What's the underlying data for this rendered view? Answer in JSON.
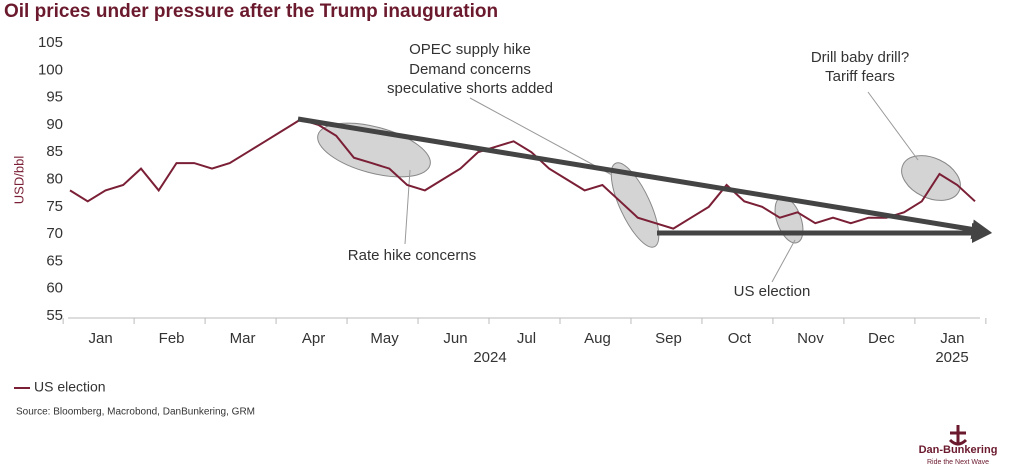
{
  "chart_data": {
    "type": "line",
    "title": "Oil prices under pressure after the Trump inauguration",
    "y_label": "USD/bbl",
    "categories": [
      null,
      null,
      "Jan",
      null,
      null,
      null,
      "Feb",
      null,
      null,
      null,
      "Mar",
      null,
      null,
      null,
      "Apr",
      null,
      null,
      null,
      "May",
      null,
      null,
      null,
      "Jun",
      null,
      null,
      null,
      "Jul",
      null,
      null,
      null,
      "Aug",
      null,
      null,
      null,
      "Sep",
      null,
      null,
      null,
      "Oct",
      null,
      null,
      null,
      "Nov",
      null,
      null,
      null,
      "Dec",
      null,
      null,
      null,
      "Jan",
      null
    ],
    "year_labels": [
      "2024",
      "2025"
    ],
    "series": [
      {
        "name": "US election",
        "color": "#7a1f35",
        "values": [
          78,
          76,
          78,
          79,
          82,
          78,
          83,
          83,
          82,
          83,
          85,
          87,
          89,
          91,
          90,
          88,
          84,
          83,
          82,
          79,
          78,
          80,
          82,
          85,
          86,
          87,
          85,
          82,
          80,
          78,
          79,
          76,
          73,
          72,
          71,
          73,
          75,
          79,
          76,
          75,
          73,
          74,
          72,
          73,
          72,
          73,
          73,
          74,
          76,
          81,
          79,
          76
        ]
      }
    ],
    "ylim": [
      55,
      105
    ],
    "yticks": [
      55,
      60,
      65,
      70,
      75,
      80,
      85,
      90,
      95,
      100,
      105
    ],
    "grid": false,
    "annotations": [
      "OPEC supply hike",
      "Demand concerns",
      "speculative shorts added",
      "Drill baby drill?",
      "Tariff fears",
      "Rate hike concerns",
      "US election"
    ],
    "source": "Source: Bloomberg, Macrobond, DanBunkering, GRM",
    "logo": "Dan-Bunkering",
    "logo_tagline": "Ride the Next Wave"
  }
}
